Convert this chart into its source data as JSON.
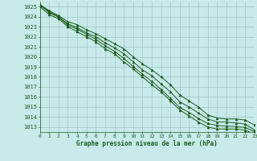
{
  "title": "Graphe pression niveau de la mer (hPa)",
  "bg_color": "#c8eaea",
  "grid_color": "#a0c8c8",
  "line_color": "#1a5c1a",
  "xlim": [
    0,
    23
  ],
  "ylim": [
    1012.5,
    1025.5
  ],
  "xticks": [
    0,
    1,
    2,
    3,
    4,
    5,
    6,
    7,
    8,
    9,
    10,
    11,
    12,
    13,
    14,
    15,
    16,
    17,
    18,
    19,
    20,
    21,
    22,
    23
  ],
  "yticks": [
    1013,
    1014,
    1015,
    1016,
    1017,
    1018,
    1019,
    1020,
    1021,
    1022,
    1023,
    1024,
    1025
  ],
  "lines": [
    [
      1025.2,
      1024.6,
      1024.1,
      1023.5,
      1023.2,
      1022.7,
      1022.3,
      1021.8,
      1021.3,
      1020.8,
      1020.0,
      1019.3,
      1018.7,
      1018.0,
      1017.2,
      1016.2,
      1015.6,
      1015.0,
      1014.2,
      1013.9,
      1013.8,
      1013.8,
      1013.7,
      1013.2
    ],
    [
      1025.2,
      1024.5,
      1024.0,
      1023.3,
      1022.9,
      1022.4,
      1022.0,
      1021.4,
      1020.9,
      1020.3,
      1019.5,
      1018.7,
      1018.1,
      1017.3,
      1016.5,
      1015.5,
      1015.0,
      1014.4,
      1013.8,
      1013.5,
      1013.5,
      1013.4,
      1013.3,
      1012.7
    ],
    [
      1025.15,
      1024.4,
      1023.95,
      1023.15,
      1022.75,
      1022.25,
      1021.75,
      1021.1,
      1020.55,
      1019.85,
      1019.05,
      1018.25,
      1017.55,
      1016.75,
      1015.85,
      1014.95,
      1014.45,
      1013.85,
      1013.35,
      1013.15,
      1013.1,
      1013.05,
      1012.95,
      1012.55
    ],
    [
      1025.0,
      1024.2,
      1023.8,
      1023.0,
      1022.5,
      1022.0,
      1021.5,
      1020.8,
      1020.3,
      1019.5,
      1018.8,
      1018.0,
      1017.2,
      1016.5,
      1015.6,
      1014.7,
      1014.1,
      1013.5,
      1013.0,
      1012.8,
      1012.8,
      1012.8,
      1012.7,
      1012.3
    ]
  ],
  "x": [
    0,
    1,
    2,
    3,
    4,
    5,
    6,
    7,
    8,
    9,
    10,
    11,
    12,
    13,
    14,
    15,
    16,
    17,
    18,
    19,
    20,
    21,
    22,
    23
  ]
}
